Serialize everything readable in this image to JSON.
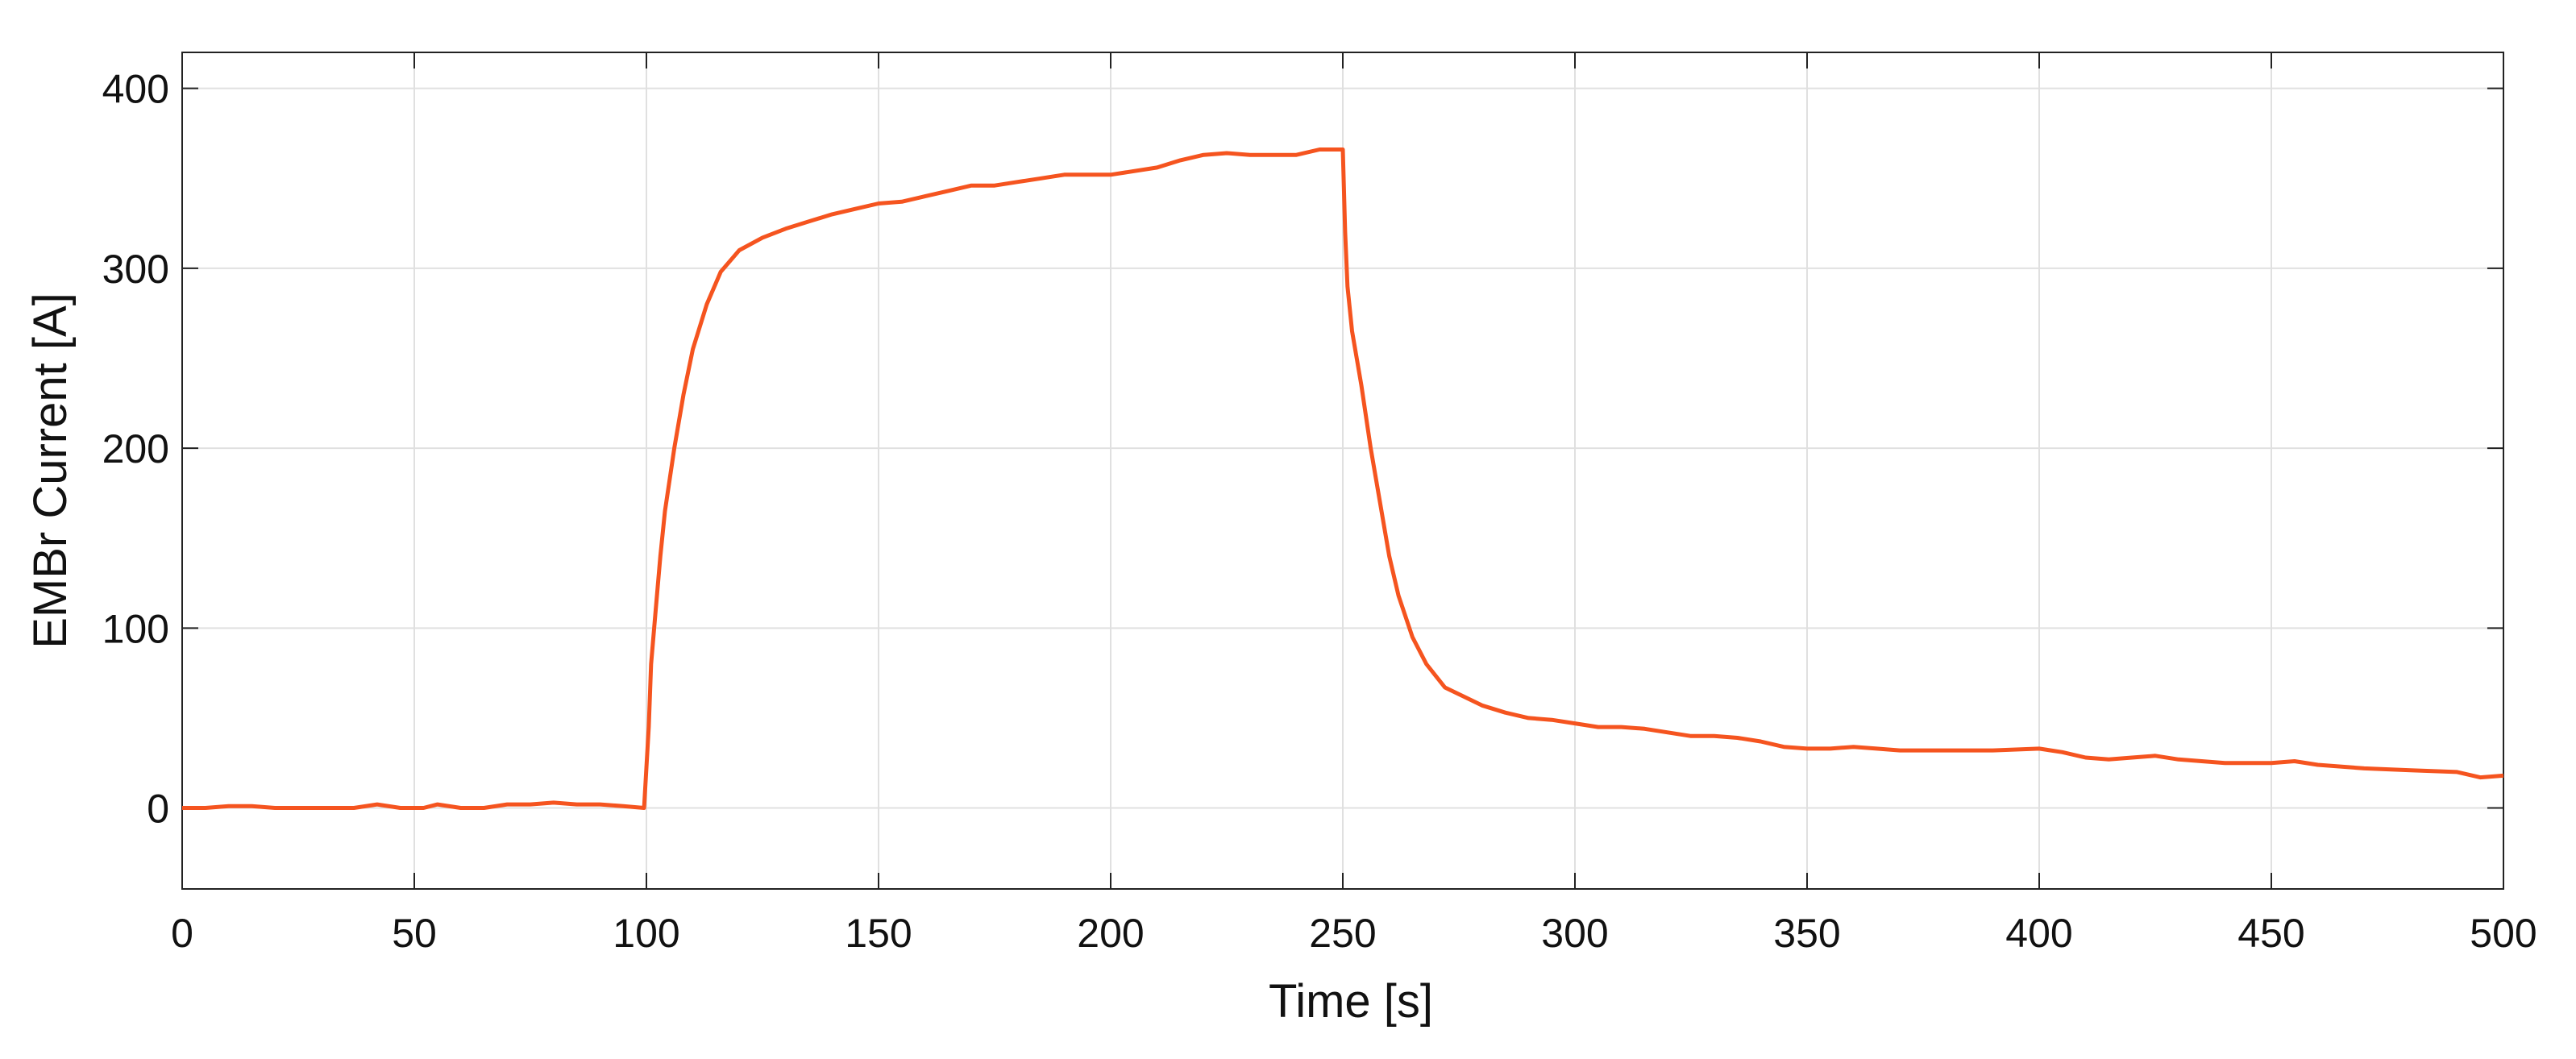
{
  "chart_data": {
    "type": "line",
    "xlabel": "Time [s]",
    "ylabel": "EMBr Current [A]",
    "xlim": [
      0,
      500
    ],
    "ylim": [
      -45,
      420
    ],
    "xticks": [
      0,
      50,
      100,
      150,
      200,
      250,
      300,
      350,
      400,
      450,
      500
    ],
    "yticks": [
      0,
      100,
      200,
      300,
      400
    ],
    "grid": true,
    "series": [
      {
        "name": "EMBr Current",
        "color": "#f5541f",
        "x": [
          0,
          5,
          10,
          15,
          20,
          30,
          37,
          42,
          47,
          52,
          55,
          60,
          65,
          70,
          75,
          80,
          85,
          90,
          95,
          99.5,
          100.5,
          101,
          102,
          103,
          104,
          106,
          108,
          110,
          113,
          116,
          120,
          125,
          130,
          135,
          140,
          145,
          150,
          155,
          160,
          165,
          170,
          175,
          180,
          185,
          190,
          200,
          210,
          215,
          220,
          225,
          230,
          240,
          245,
          250,
          250.5,
          251,
          252,
          254,
          256,
          258,
          260,
          262,
          265,
          268,
          272,
          276,
          280,
          285,
          290,
          295,
          300,
          305,
          310,
          315,
          320,
          325,
          330,
          335,
          340,
          345,
          350,
          355,
          360,
          365,
          370,
          380,
          390,
          400,
          405,
          410,
          415,
          420,
          425,
          430,
          435,
          440,
          450,
          455,
          460,
          470,
          480,
          490,
          495,
          500
        ],
        "values": [
          0,
          0,
          1,
          1,
          0,
          0,
          0,
          2,
          0,
          0,
          2,
          0,
          0,
          2,
          2,
          3,
          2,
          2,
          1,
          0,
          45,
          80,
          110,
          140,
          165,
          200,
          230,
          255,
          280,
          298,
          310,
          317,
          322,
          326,
          330,
          333,
          336,
          337,
          340,
          343,
          346,
          346,
          348,
          350,
          352,
          352,
          356,
          360,
          363,
          364,
          363,
          363,
          366,
          366,
          320,
          290,
          265,
          235,
          200,
          170,
          140,
          118,
          95,
          80,
          67,
          62,
          57,
          53,
          50,
          49,
          47,
          45,
          45,
          44,
          42,
          40,
          40,
          39,
          37,
          34,
          33,
          33,
          34,
          33,
          32,
          32,
          32,
          33,
          31,
          28,
          27,
          28,
          29,
          27,
          26,
          25,
          25,
          26,
          24,
          22,
          21,
          20,
          17,
          18
        ]
      }
    ]
  }
}
